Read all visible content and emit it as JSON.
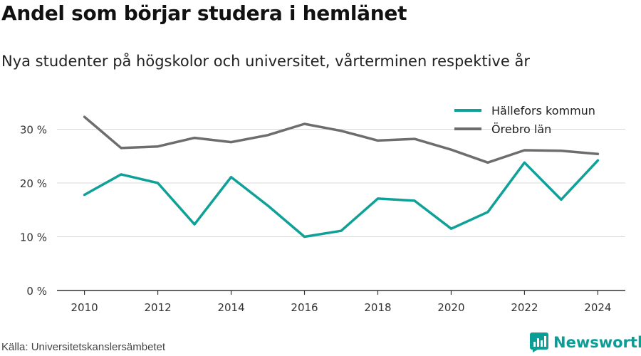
{
  "title": "Andel som börjar studera i hemlänet",
  "subtitle": "Nya studenter på högskolor och universitet, vårterminen respektive år",
  "source": "Källa: Universitetskanslersämbetet",
  "brand": {
    "name": "Newsworthy",
    "icon": "newsworthy-logo-icon",
    "color": "#0a9e96"
  },
  "chart_data": {
    "type": "line",
    "x": [
      2010,
      2011,
      2012,
      2013,
      2014,
      2015,
      2016,
      2017,
      2018,
      2019,
      2020,
      2021,
      2022,
      2023,
      2024
    ],
    "series": [
      {
        "name": "Hällefors kommun",
        "color": "#0fa198",
        "values": [
          17.8,
          21.6,
          20.0,
          12.3,
          21.1,
          15.8,
          10.0,
          11.1,
          17.1,
          16.7,
          11.5,
          14.6,
          23.8,
          16.9,
          24.2
        ]
      },
      {
        "name": "Örebro län",
        "color": "#6d6d70",
        "values": [
          32.3,
          26.5,
          26.8,
          28.4,
          27.6,
          28.9,
          31.0,
          29.7,
          27.9,
          28.2,
          26.2,
          23.8,
          26.1,
          26.0,
          25.4
        ]
      }
    ],
    "yticks": [
      0,
      10,
      20,
      30
    ],
    "ytick_labels": [
      "0 %",
      "10 %",
      "20 %",
      "30 %"
    ],
    "xticks": [
      2010,
      2012,
      2014,
      2016,
      2018,
      2020,
      2022,
      2024
    ],
    "xtick_labels": [
      "2010",
      "2012",
      "2014",
      "2016",
      "2018",
      "2020",
      "2022",
      "2024"
    ],
    "xlim": [
      2009.25,
      2024.75
    ],
    "ylim": [
      0,
      35.5
    ],
    "grid": true,
    "legend_position": "top-right",
    "xlabel": "",
    "ylabel": ""
  }
}
